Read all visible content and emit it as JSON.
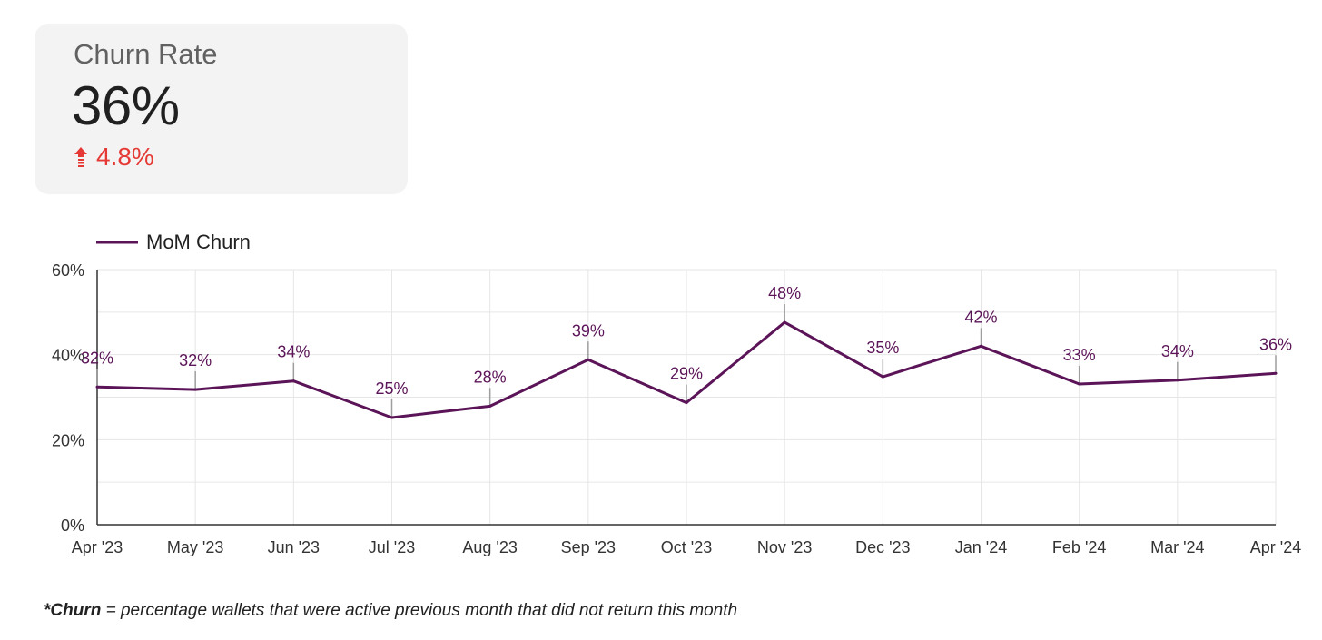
{
  "kpi": {
    "label": "Churn Rate",
    "value": "36%",
    "delta": "4.8%",
    "delta_icon": "arrow-up-icon",
    "delta_color": "#e53935"
  },
  "chart_data": {
    "type": "line",
    "legend": {
      "label": "MoM Churn",
      "placement": "top-left"
    },
    "series": [
      {
        "name": "MoM Churn",
        "color": "#5b1458",
        "values": [
          32.4,
          31.8,
          33.8,
          25.2,
          27.9,
          38.8,
          28.7,
          47.6,
          34.8,
          42.0,
          33.1,
          34.0,
          35.6
        ],
        "labels": [
          "32%",
          "32%",
          "34%",
          "25%",
          "28%",
          "39%",
          "29%",
          "48%",
          "35%",
          "42%",
          "33%",
          "34%",
          "36%"
        ]
      }
    ],
    "categories": [
      "Apr '23",
      "May '23",
      "Jun '23",
      "Jul '23",
      "Aug '23",
      "Sep '23",
      "Oct '23",
      "Nov '23",
      "Dec '23",
      "Jan '24",
      "Feb '24",
      "Mar '24",
      "Apr '24"
    ],
    "y_ticks": [
      "0%",
      "20%",
      "40%",
      "60%"
    ],
    "ylim": [
      0,
      60
    ],
    "grid": true
  },
  "footnote": {
    "term": "*Churn",
    "definition": " = percentage wallets that were active previous month that did not return this month"
  }
}
